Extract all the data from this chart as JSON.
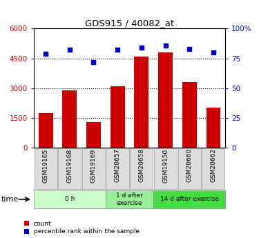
{
  "title": "GDS915 / 40082_at",
  "categories": [
    "GSM19165",
    "GSM19168",
    "GSM19169",
    "GSM20657",
    "GSM20658",
    "GSM19150",
    "GSM20660",
    "GSM20662"
  ],
  "bar_values": [
    1750,
    2900,
    1300,
    3100,
    4600,
    4800,
    3300,
    2000
  ],
  "percentile_values": [
    79,
    82,
    72,
    82,
    84,
    86,
    83,
    80
  ],
  "bar_color": "#cc0000",
  "percentile_color": "#0000cc",
  "ylim_left": [
    0,
    6000
  ],
  "ylim_right": [
    0,
    100
  ],
  "yticks_left": [
    0,
    1500,
    3000,
    4500,
    6000
  ],
  "yticks_right": [
    0,
    25,
    50,
    75,
    100
  ],
  "yticklabels_right": [
    "0",
    "25",
    "50",
    "75",
    "100%"
  ],
  "groups": [
    {
      "label": "0 h",
      "indices": [
        0,
        1,
        2
      ],
      "color": "#ccffcc"
    },
    {
      "label": "1 d after\nexercise",
      "indices": [
        3,
        4
      ],
      "color": "#99ee99"
    },
    {
      "label": "14 d after exercise",
      "indices": [
        5,
        6,
        7
      ],
      "color": "#44dd44"
    }
  ],
  "time_label": "time",
  "legend_items": [
    {
      "label": "count",
      "color": "#cc0000"
    },
    {
      "label": "percentile rank within the sample",
      "color": "#0000cc"
    }
  ],
  "tick_color_left": "#cc0000",
  "tick_color_right": "#0000cc",
  "background_color": "#ffffff",
  "grid_color": "#000000"
}
